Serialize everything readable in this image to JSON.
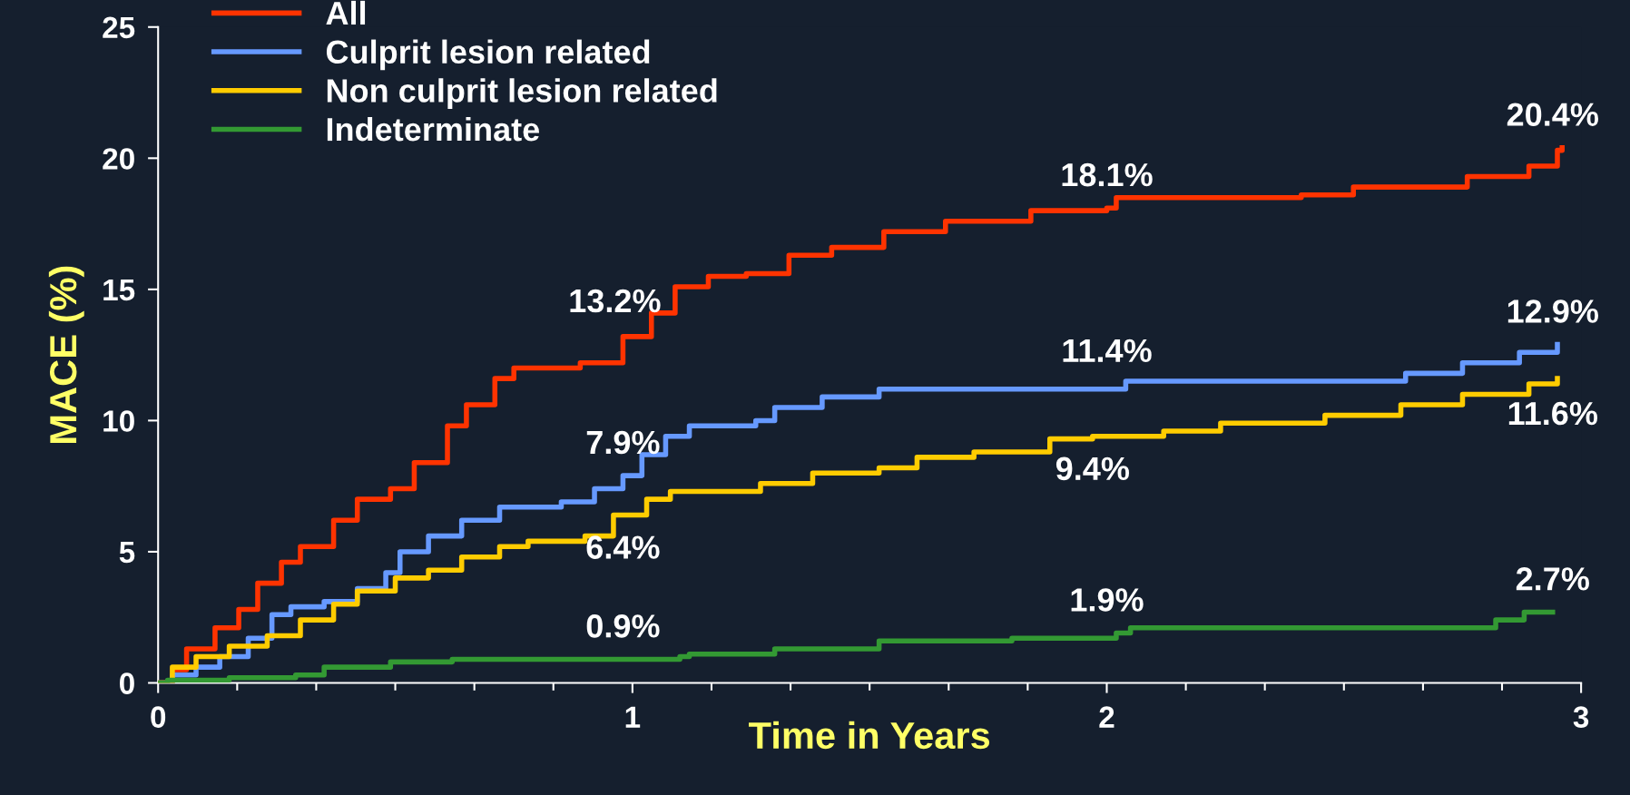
{
  "chart_data": {
    "type": "step",
    "xlabel": "Time in Years",
    "ylabel": "MACE (%)",
    "xlim": [
      0,
      3
    ],
    "ylim": [
      0,
      25
    ],
    "xticks": [
      0,
      {
        "value": 0.1667,
        "label": null
      },
      {
        "value": 0.3333,
        "label": null
      },
      {
        "value": 0.5,
        "label": null
      },
      {
        "value": 0.6667,
        "label": null
      },
      {
        "value": 0.8333,
        "label": null
      },
      1,
      {
        "value": 1.1667,
        "label": null
      },
      {
        "value": 1.3333,
        "label": null
      },
      {
        "value": 1.5,
        "label": null
      },
      {
        "value": 1.6667,
        "label": null
      },
      {
        "value": 1.8333,
        "label": null
      },
      2,
      {
        "value": 2.1667,
        "label": null
      },
      {
        "value": 2.3333,
        "label": null
      },
      {
        "value": 2.5,
        "label": null
      },
      {
        "value": 2.6667,
        "label": null
      },
      {
        "value": 2.8333,
        "label": null
      },
      3
    ],
    "yticks": [
      0,
      5,
      10,
      15,
      20,
      25
    ],
    "grid": false,
    "legend": "top left",
    "line_style": "solid",
    "marker": "none",
    "series": [
      {
        "name": "All",
        "color": "#ff3300",
        "x": [
          0,
          0.03,
          0.06,
          0.12,
          0.17,
          0.21,
          0.26,
          0.3,
          0.37,
          0.42,
          0.49,
          0.54,
          0.61,
          0.65,
          0.71,
          0.75,
          0.89,
          0.98,
          1.04,
          1.09,
          1.16,
          1.24,
          1.33,
          1.42,
          1.53,
          1.66,
          1.84,
          2.0,
          2.02,
          2.41,
          2.52,
          2.76,
          2.89,
          2.95,
          2.96
        ],
        "values": [
          0,
          0.5,
          1.3,
          2.1,
          2.8,
          3.8,
          4.6,
          5.2,
          6.2,
          7.0,
          7.4,
          8.4,
          9.8,
          10.6,
          11.6,
          12.0,
          12.2,
          13.2,
          14.1,
          15.1,
          15.5,
          15.6,
          16.3,
          16.6,
          17.2,
          17.6,
          18.0,
          18.1,
          18.5,
          18.6,
          18.9,
          19.3,
          19.7,
          20.3,
          20.4
        ]
      },
      {
        "name": "Culprit lesion related",
        "color": "#6699ff",
        "x": [
          0,
          0.03,
          0.08,
          0.13,
          0.19,
          0.24,
          0.28,
          0.35,
          0.42,
          0.48,
          0.51,
          0.57,
          0.64,
          0.72,
          0.85,
          0.92,
          0.98,
          1.02,
          1.07,
          1.12,
          1.26,
          1.3,
          1.4,
          1.52,
          2.0,
          2.04,
          2.63,
          2.75,
          2.87,
          2.95
        ],
        "values": [
          0,
          0.3,
          0.6,
          1.0,
          1.7,
          2.6,
          2.9,
          3.1,
          3.6,
          4.2,
          5.0,
          5.6,
          6.2,
          6.7,
          6.9,
          7.4,
          7.9,
          8.7,
          9.4,
          9.8,
          10.0,
          10.5,
          10.9,
          11.2,
          11.2,
          11.5,
          11.8,
          12.2,
          12.6,
          12.9
        ]
      },
      {
        "name": "Non culprit lesion related",
        "color": "#ffcc00",
        "x": [
          0,
          0.03,
          0.08,
          0.15,
          0.23,
          0.3,
          0.37,
          0.42,
          0.5,
          0.57,
          0.64,
          0.72,
          0.78,
          0.9,
          0.96,
          1.03,
          1.08,
          1.27,
          1.38,
          1.52,
          1.6,
          1.72,
          1.88,
          1.97,
          2.12,
          2.24,
          2.46,
          2.62,
          2.75,
          2.89,
          2.95
        ],
        "values": [
          0,
          0.6,
          1.0,
          1.4,
          1.8,
          2.4,
          3.0,
          3.5,
          4.0,
          4.3,
          4.8,
          5.2,
          5.4,
          5.6,
          6.4,
          7.0,
          7.3,
          7.6,
          8.0,
          8.2,
          8.6,
          8.8,
          9.3,
          9.4,
          9.6,
          9.9,
          10.2,
          10.6,
          11.0,
          11.4,
          11.6
        ]
      },
      {
        "name": "Indeterminate",
        "color": "#339933",
        "x": [
          0,
          0.02,
          0.15,
          0.29,
          0.35,
          0.49,
          0.62,
          1.1,
          1.12,
          1.3,
          1.52,
          1.8,
          2.02,
          2.05,
          2.82,
          2.88,
          2.94
        ],
        "values": [
          0,
          0.1,
          0.2,
          0.3,
          0.6,
          0.8,
          0.9,
          1.0,
          1.1,
          1.3,
          1.6,
          1.7,
          1.9,
          2.1,
          2.4,
          2.7,
          2.7
        ]
      }
    ],
    "annotations": [
      {
        "text": "13.2%",
        "x": 1.0,
        "y": 13.2
      },
      {
        "text": "7.9%",
        "x": 0.98,
        "y": 7.9
      },
      {
        "text": "6.4%",
        "x": 0.98,
        "y": 6.4
      },
      {
        "text": "0.9%",
        "x": 0.98,
        "y": 0.9
      },
      {
        "text": "18.1%",
        "x": 2.0,
        "y": 18.1
      },
      {
        "text": "11.4%",
        "x": 2.0,
        "y": 11.4
      },
      {
        "text": "9.4%",
        "x": 1.97,
        "y": 9.4
      },
      {
        "text": "1.9%",
        "x": 2.0,
        "y": 1.9
      },
      {
        "text": "20.4%",
        "x": 2.94,
        "y": 20.4
      },
      {
        "text": "12.9%",
        "x": 2.94,
        "y": 12.9
      },
      {
        "text": "11.6%",
        "x": 2.94,
        "y": 11.6
      },
      {
        "text": "2.7%",
        "x": 2.94,
        "y": 2.7
      }
    ]
  }
}
